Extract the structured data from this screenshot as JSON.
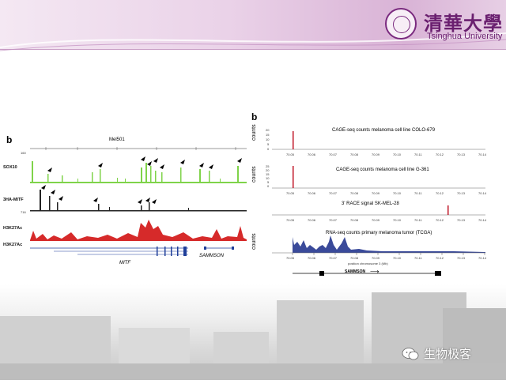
{
  "header": {
    "university_cn": "清華大學",
    "university_en": "Tsinghua University"
  },
  "left_panel": {
    "letter": "b",
    "title": "Mel501",
    "tracks": [
      {
        "label": "SOX10",
        "scale": "160"
      },
      {
        "label": "3HA-MITF",
        "scale": "716"
      },
      {
        "label": "H3K27Ac",
        "scale": ""
      },
      {
        "label": "H3K27Ac",
        "scale": ""
      }
    ],
    "gene_labels": [
      "MITF",
      "SAMMSON"
    ],
    "track_colors": {
      "sox10": "#7fd34a",
      "mitf": "#222222",
      "h3k27ac": "#d62a2a",
      "genes": "#1f3f9a"
    }
  },
  "right_panel": {
    "letter": "b",
    "ylabel": "counts",
    "x_ticks": [
      "70.05",
      "70.06",
      "70.07",
      "70.08",
      "70.09",
      "70.10",
      "70.11",
      "70.12",
      "70.13",
      "70.14"
    ],
    "xlabel": "position chromosome 3 (Mb)",
    "tracks": [
      {
        "title": "CAGE-seq counts melanoma cell line COLO-679",
        "y_ticks": [
          "20",
          "15",
          "10",
          "5",
          "0"
        ]
      },
      {
        "title": "CAGE-seq counts melanoma cell line G-361",
        "y_ticks": [
          "25",
          "20",
          "15",
          "10",
          "5",
          "0"
        ]
      },
      {
        "title": "3' RACE signal SK-MEL-28",
        "y_ticks": []
      },
      {
        "title": "RNA-seq counts primary melanoma tumor (TCGA)",
        "y_ticks": []
      }
    ],
    "gene_label": "SAMMSON",
    "colors": {
      "cage": "#c0182a",
      "rnaseq": "#3a4a9a"
    }
  },
  "watermark": {
    "text": "生物极客"
  }
}
